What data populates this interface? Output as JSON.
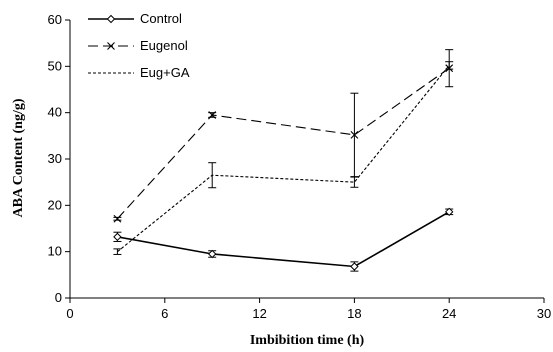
{
  "chart_data": {
    "type": "line",
    "xlabel": "Imbibition time (h)",
    "ylabel": "ABA  Content (ng/g)",
    "xlim": [
      0,
      30
    ],
    "ylim": [
      0,
      60
    ],
    "xticks": [
      0,
      6,
      12,
      18,
      24,
      30
    ],
    "yticks": [
      0,
      10,
      20,
      30,
      40,
      50,
      60
    ],
    "grid": false,
    "legend_position": "top-left",
    "series": [
      {
        "name": "Control",
        "marker": "diamond",
        "line_style": "solid",
        "color": "#000000",
        "points": [
          {
            "x": 3,
            "y": 13.2,
            "err": 1.0
          },
          {
            "x": 9,
            "y": 9.5,
            "err": 0.7
          },
          {
            "x": 18,
            "y": 6.8,
            "err": 1.0
          },
          {
            "x": 24,
            "y": 18.6,
            "err": 0.6
          }
        ]
      },
      {
        "name": "Eugenol",
        "marker": "x",
        "line_style": "long-dash",
        "color": "#000000",
        "points": [
          {
            "x": 3,
            "y": 17.1,
            "err": 0.3
          },
          {
            "x": 9,
            "y": 39.5,
            "err": 0.5
          },
          {
            "x": 18,
            "y": 35.2,
            "err": 9.0
          },
          {
            "x": 24,
            "y": 49.6,
            "err": 4.0
          }
        ]
      },
      {
        "name": "Eug+GA",
        "marker": "none",
        "line_style": "dotted",
        "color": "#000000",
        "points": [
          {
            "x": 3,
            "y": 10.0,
            "err": 0.6
          },
          {
            "x": 9,
            "y": 26.5,
            "err": 2.7
          },
          {
            "x": 18,
            "y": 25.0,
            "err": 1.1
          },
          {
            "x": 24,
            "y": 50.2,
            "err": 0.8
          }
        ]
      }
    ]
  }
}
